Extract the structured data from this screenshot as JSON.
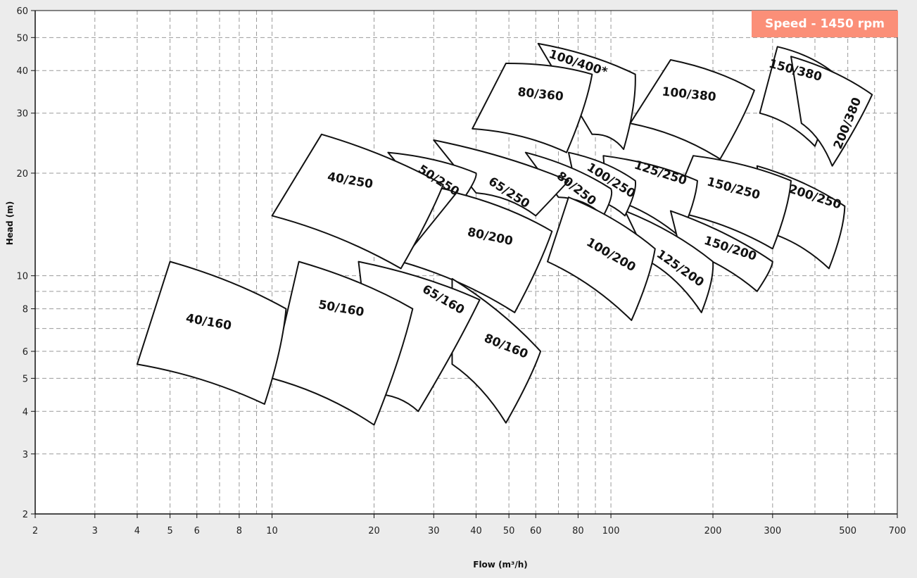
{
  "colors": {
    "badge": "#fb8f78",
    "background": "#ececec",
    "plot": "#ffffff"
  },
  "badge": {
    "text": "Speed - 1450 rpm"
  },
  "chart_data": {
    "type": "pump-selection-chart",
    "xlabel": "Flow (m³/h)",
    "ylabel": "Head (m)",
    "xscale": "log",
    "yscale": "log",
    "xlim": [
      2,
      700
    ],
    "ylim": [
      2,
      60
    ],
    "grid": true,
    "xticks": [
      2,
      3,
      4,
      5,
      6,
      8,
      10,
      20,
      30,
      40,
      50,
      60,
      80,
      100,
      200,
      300,
      500,
      700
    ],
    "yticks": [
      2,
      3,
      4,
      5,
      6,
      8,
      10,
      20,
      30,
      40,
      50,
      60
    ],
    "regions": [
      {
        "name": "100/400*",
        "tl": [
          61,
          48
        ],
        "tr": [
          118,
          39
        ],
        "br": [
          109,
          23.5
        ],
        "bl": [
          88,
          26
        ],
        "label": [
          80,
          42
        ],
        "rot": 18
      },
      {
        "name": "80/360",
        "tl": [
          49,
          42
        ],
        "tr": [
          88,
          39
        ],
        "br": [
          74,
          23
        ],
        "bl": [
          39,
          27
        ],
        "label": [
          62,
          34
        ],
        "rot": 6
      },
      {
        "name": "150/380",
        "tl": [
          310,
          47
        ],
        "tr": [
          460,
          39
        ],
        "br": [
          400,
          24
        ],
        "bl": [
          275,
          30
        ],
        "label": [
          350,
          40
        ],
        "rot": 15
      },
      {
        "name": "200/380",
        "tl": [
          340,
          44
        ],
        "tr": [
          590,
          34
        ],
        "br": [
          450,
          21
        ],
        "bl": [
          365,
          28
        ],
        "label": [
          500,
          28
        ],
        "rot": -68
      },
      {
        "name": "100/380",
        "tl": [
          150,
          43
        ],
        "tr": [
          265,
          35
        ],
        "br": [
          210,
          22
        ],
        "bl": [
          114,
          28
        ],
        "label": [
          170,
          34
        ],
        "rot": 6
      },
      {
        "name": "200/250",
        "tl": [
          270,
          21
        ],
        "tr": [
          490,
          16
        ],
        "br": [
          440,
          10.5
        ],
        "bl": [
          285,
          13.5
        ],
        "label": [
          400,
          17
        ],
        "rot": 18
      },
      {
        "name": "150/250",
        "tl": [
          175,
          22.5
        ],
        "tr": [
          340,
          19
        ],
        "br": [
          300,
          12
        ],
        "bl": [
          150,
          15.5
        ],
        "label": [
          230,
          18
        ],
        "rot": 15
      },
      {
        "name": "125/250",
        "tl": [
          95,
          22.5
        ],
        "tr": [
          180,
          19
        ],
        "br": [
          160,
          13
        ],
        "bl": [
          97,
          17
        ],
        "label": [
          140,
          20
        ],
        "rot": 18
      },
      {
        "name": "150/200",
        "tl": [
          150,
          15.5
        ],
        "tr": [
          300,
          11
        ],
        "br": [
          270,
          9
        ],
        "bl": [
          160,
          12
        ],
        "label": [
          225,
          12
        ],
        "rot": 18
      },
      {
        "name": "125/200",
        "tl": [
          110,
          15.5
        ],
        "tr": [
          200,
          11
        ],
        "br": [
          185,
          7.8
        ],
        "bl": [
          130,
          11
        ],
        "label": [
          160,
          10.5
        ],
        "rot": 35
      },
      {
        "name": "100/250",
        "tl": [
          75,
          23
        ],
        "tr": [
          118,
          19
        ],
        "br": [
          110,
          15
        ],
        "bl": [
          80,
          17
        ],
        "label": [
          100,
          19
        ],
        "rot": 32
      },
      {
        "name": "80/250",
        "tl": [
          56,
          23
        ],
        "tr": [
          100,
          18
        ],
        "br": [
          95,
          15
        ],
        "bl": [
          70,
          17
        ],
        "label": [
          79,
          18
        ],
        "rot": 38
      },
      {
        "name": "100/200",
        "tl": [
          75,
          17
        ],
        "tr": [
          135,
          12
        ],
        "br": [
          115,
          7.4
        ],
        "bl": [
          65,
          11
        ],
        "label": [
          100,
          11.5
        ],
        "rot": 30
      },
      {
        "name": "65/250",
        "tl": [
          30,
          25
        ],
        "tr": [
          75,
          19
        ],
        "br": [
          60,
          15
        ],
        "bl": [
          40,
          17.5
        ],
        "label": [
          50,
          17.5
        ],
        "rot": 33
      },
      {
        "name": "50/250",
        "tl": [
          22,
          23
        ],
        "tr": [
          40,
          20
        ],
        "br": [
          37,
          17
        ],
        "bl": [
          27,
          18
        ],
        "label": [
          31,
          19
        ],
        "rot": 33
      },
      {
        "name": "80/200",
        "tl": [
          35,
          17.5
        ],
        "tr": [
          67,
          13.5
        ],
        "br": [
          52,
          7.8
        ],
        "bl": [
          24,
          11
        ],
        "label": [
          44,
          13
        ],
        "rot": 12
      },
      {
        "name": "40/250",
        "tl": [
          14,
          26
        ],
        "tr": [
          32,
          18.5
        ],
        "br": [
          24,
          10.5
        ],
        "bl": [
          10,
          15
        ],
        "label": [
          17,
          19
        ],
        "rot": 10
      },
      {
        "name": "80/160",
        "tl": [
          34,
          9.8
        ],
        "tr": [
          62,
          6
        ],
        "br": [
          49,
          3.7
        ],
        "bl": [
          34,
          5.5
        ],
        "label": [
          49,
          6.2
        ],
        "rot": 22
      },
      {
        "name": "65/160",
        "tl": [
          18,
          11
        ],
        "tr": [
          41,
          8.5
        ],
        "br": [
          27,
          4.0
        ],
        "bl": [
          20,
          4.5
        ],
        "label": [
          32,
          8.5
        ],
        "rot": 30
      },
      {
        "name": "50/160",
        "tl": [
          12,
          11
        ],
        "tr": [
          26,
          8
        ],
        "br": [
          20,
          3.65
        ],
        "bl": [
          10,
          5
        ],
        "label": [
          16,
          8
        ],
        "rot": 10
      },
      {
        "name": "40/160",
        "tl": [
          5,
          11
        ],
        "tr": [
          11,
          8
        ],
        "br": [
          9.5,
          4.2
        ],
        "bl": [
          4,
          5.5
        ],
        "label": [
          6.5,
          7.3
        ],
        "rot": 10
      }
    ]
  }
}
